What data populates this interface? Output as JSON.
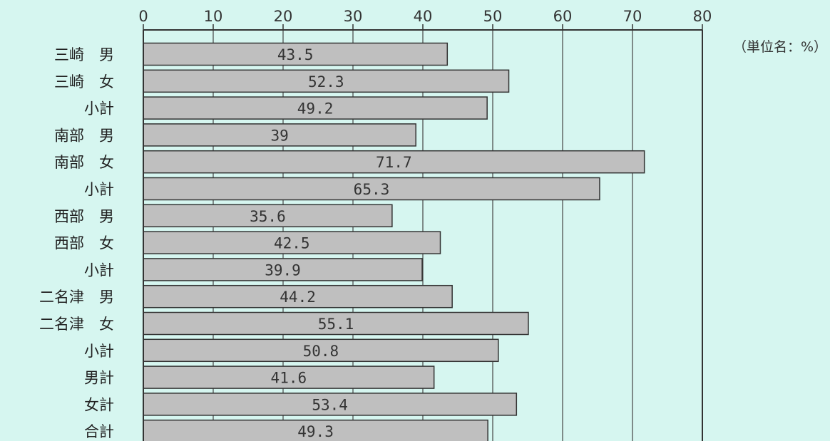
{
  "chart_data": {
    "type": "bar",
    "orientation": "horizontal",
    "categories": [
      "三崎　男",
      "三崎　女",
      "小計",
      "南部　男",
      "南部　女",
      "小計",
      "西部　男",
      "西部　女",
      "小計",
      "二名津　男",
      "二名津　女",
      "小計",
      "男計",
      "女計",
      "合計"
    ],
    "values": [
      43.5,
      52.3,
      49.2,
      39,
      71.7,
      65.3,
      35.6,
      42.5,
      39.9,
      44.2,
      55.1,
      50.8,
      41.6,
      53.4,
      49.3
    ],
    "value_labels": [
      "43.5",
      "52.3",
      "49.2",
      "39",
      "71.7",
      "65.3",
      "35.6",
      "42.5",
      "39.9",
      "44.2",
      "55.1",
      "50.8",
      "41.6",
      "53.4",
      "49.3"
    ],
    "xlim": [
      0,
      80
    ],
    "xticks": [
      0,
      10,
      20,
      30,
      40,
      50,
      60,
      70,
      80
    ],
    "tick_position": "top",
    "unit_note": "（単位名：%）",
    "grid": true,
    "legend": "none",
    "bar_color": "#bfbfbf",
    "background_color": "#d6f6f0"
  }
}
